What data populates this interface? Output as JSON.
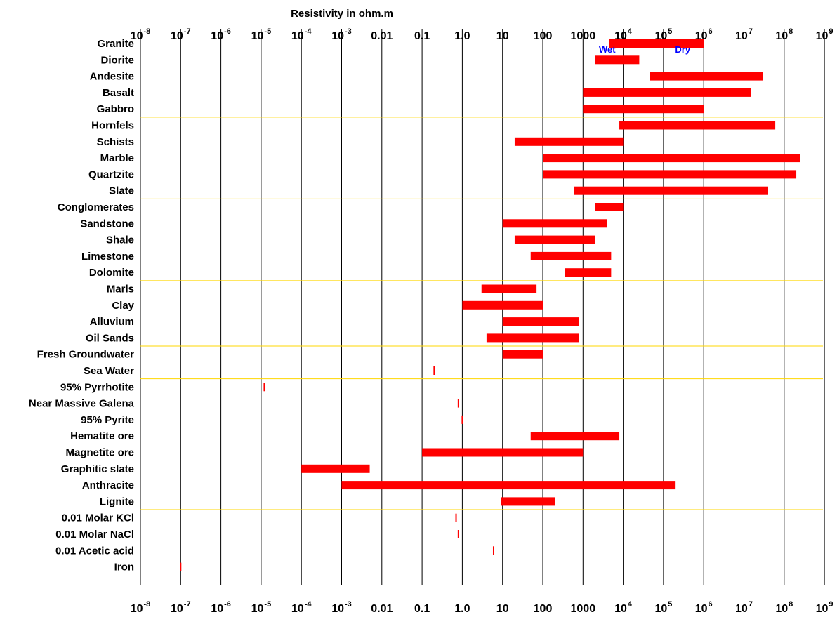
{
  "chart_data": {
    "type": "bar",
    "orientation": "horizontal-range",
    "title": "Resistivity in ohm.m",
    "xscale": "log",
    "xlim": [
      1e-08,
      1000000000.0
    ],
    "grid": true,
    "tick_labels": [
      {
        "base": "10",
        "exp": "-8"
      },
      {
        "base": "10",
        "exp": "-7"
      },
      {
        "base": "10",
        "exp": "-6"
      },
      {
        "base": "10",
        "exp": "-5"
      },
      {
        "base": "10",
        "exp": "-4"
      },
      {
        "base": "10",
        "exp": "-3"
      },
      {
        "base": "0.01",
        "exp": ""
      },
      {
        "base": "0.1",
        "exp": ""
      },
      {
        "base": "1.0",
        "exp": ""
      },
      {
        "base": "10",
        "exp": ""
      },
      {
        "base": "100",
        "exp": ""
      },
      {
        "base": "1000",
        "exp": ""
      },
      {
        "base": "10",
        "exp": "4"
      },
      {
        "base": "10",
        "exp": "5"
      },
      {
        "base": "10",
        "exp": "6"
      },
      {
        "base": "10",
        "exp": "7"
      },
      {
        "base": "10",
        "exp": "8"
      },
      {
        "base": "10",
        "exp": "9"
      }
    ],
    "annotations": [
      {
        "text": "Wet",
        "x": 4000,
        "color": "#0000ff"
      },
      {
        "text": "Dry",
        "x": 300000,
        "color": "#0000ff"
      }
    ],
    "group_separators_after": [
      "Gabbro",
      "Slate",
      "Dolomite",
      "Oil Sands",
      "Sea Water",
      "Lignite"
    ],
    "bar_color": "#ff0000",
    "separator_color": "#ffd700",
    "rows": [
      {
        "name": "Granite",
        "min": 4500,
        "max": 1000000
      },
      {
        "name": "Diorite",
        "min": 2000,
        "max": 25000
      },
      {
        "name": "Andesite",
        "min": 45000,
        "max": 30000000
      },
      {
        "name": "Basalt",
        "min": 1000,
        "max": 15000000
      },
      {
        "name": "Gabbro",
        "min": 1000,
        "max": 1000000
      },
      {
        "name": "Hornfels",
        "min": 8000,
        "max": 60000000
      },
      {
        "name": "Schists",
        "min": 20,
        "max": 10000
      },
      {
        "name": "Marble",
        "min": 100,
        "max": 250000000
      },
      {
        "name": "Quartzite",
        "min": 100,
        "max": 200000000
      },
      {
        "name": "Slate",
        "min": 600,
        "max": 40000000
      },
      {
        "name": "Conglomerates",
        "min": 2000,
        "max": 10000
      },
      {
        "name": "Sandstone",
        "min": 10,
        "max": 4000
      },
      {
        "name": "Shale",
        "min": 20,
        "max": 2000
      },
      {
        "name": "Limestone",
        "min": 50,
        "max": 5000
      },
      {
        "name": "Dolomite",
        "min": 350,
        "max": 5000
      },
      {
        "name": "Marls",
        "min": 3,
        "max": 70
      },
      {
        "name": "Clay",
        "min": 1,
        "max": 100
      },
      {
        "name": "Alluvium",
        "min": 10,
        "max": 800
      },
      {
        "name": "Oil Sands",
        "min": 4,
        "max": 800
      },
      {
        "name": "Fresh Groundwater",
        "min": 10,
        "max": 100
      },
      {
        "name": "Sea Water",
        "min": 0.2,
        "max": 0.2
      },
      {
        "name": "95% Pyrrhotite",
        "min": 1.2e-05,
        "max": 1.2e-05
      },
      {
        "name": "Near Massive Galena",
        "min": 0.8,
        "max": 0.8
      },
      {
        "name": "95% Pyrite",
        "min": 1,
        "max": 1
      },
      {
        "name": "Hematite ore",
        "min": 50,
        "max": 8000
      },
      {
        "name": "Magnetite ore",
        "min": 0.1,
        "max": 1000
      },
      {
        "name": "Graphitic slate",
        "min": 0.0001,
        "max": 0.005
      },
      {
        "name": "Anthracite",
        "min": 0.001,
        "max": 200000
      },
      {
        "name": "Lignite",
        "min": 9,
        "max": 200
      },
      {
        "name": "0.01 Molar KCl",
        "min": 0.7,
        "max": 0.7
      },
      {
        "name": "0.01 Molar NaCl",
        "min": 0.8,
        "max": 0.8
      },
      {
        "name": "0.01 Acetic acid",
        "min": 6,
        "max": 6
      },
      {
        "name": "Iron",
        "min": 1e-07,
        "max": 1e-07
      }
    ]
  }
}
